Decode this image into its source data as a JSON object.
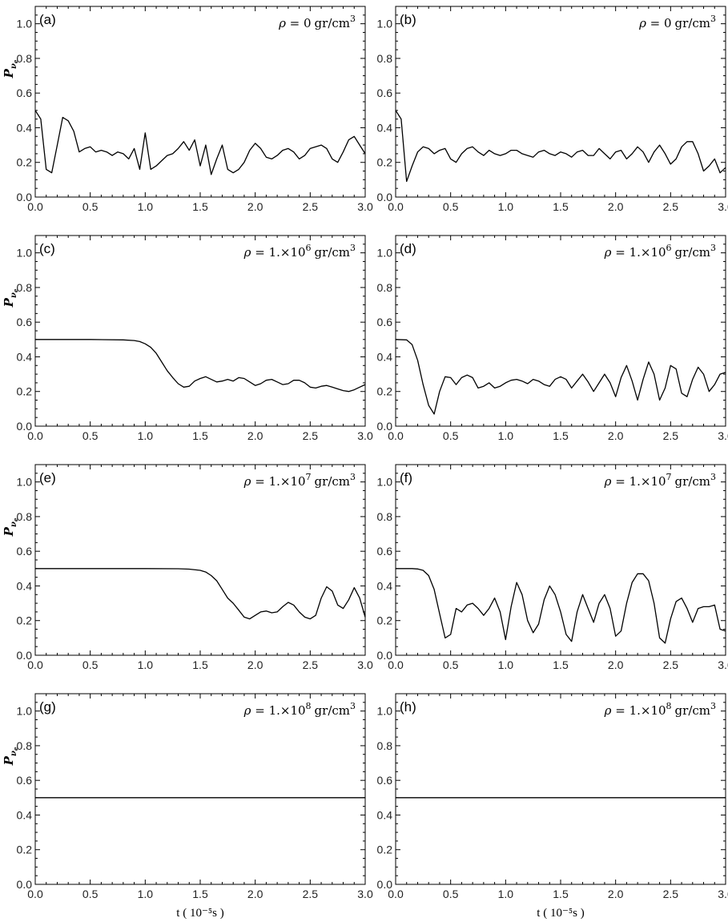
{
  "chart_data": [
    {
      "type": "line",
      "panel_label": "(a)",
      "density_label": {
        "rho": "ρ = ",
        "mantissa": "0",
        "exponent": "",
        "unit": "gr/cm",
        "unit_exp": "3"
      },
      "ylabel": {
        "base": "P",
        "sub": "ν",
        "subsub": "e"
      },
      "xlabel": "",
      "xlim": [
        0,
        3
      ],
      "ylim": [
        0,
        1.1
      ],
      "x": [
        0,
        0.05,
        0.1,
        0.15,
        0.2,
        0.25,
        0.3,
        0.35,
        0.4,
        0.45,
        0.5,
        0.55,
        0.6,
        0.65,
        0.7,
        0.75,
        0.8,
        0.85,
        0.9,
        0.95,
        1.0,
        1.05,
        1.1,
        1.15,
        1.2,
        1.25,
        1.3,
        1.35,
        1.4,
        1.45,
        1.5,
        1.55,
        1.6,
        1.65,
        1.7,
        1.75,
        1.8,
        1.85,
        1.9,
        1.95,
        2.0,
        2.05,
        2.1,
        2.15,
        2.2,
        2.25,
        2.3,
        2.35,
        2.4,
        2.45,
        2.5,
        2.55,
        2.6,
        2.65,
        2.7,
        2.75,
        2.8,
        2.85,
        2.9,
        2.95,
        3.0
      ],
      "y": [
        0.5,
        0.45,
        0.16,
        0.14,
        0.3,
        0.46,
        0.44,
        0.38,
        0.26,
        0.28,
        0.29,
        0.26,
        0.27,
        0.26,
        0.24,
        0.26,
        0.25,
        0.22,
        0.28,
        0.16,
        0.37,
        0.16,
        0.18,
        0.21,
        0.24,
        0.25,
        0.28,
        0.32,
        0.27,
        0.33,
        0.18,
        0.3,
        0.13,
        0.22,
        0.3,
        0.16,
        0.14,
        0.16,
        0.2,
        0.27,
        0.31,
        0.28,
        0.23,
        0.22,
        0.24,
        0.27,
        0.28,
        0.26,
        0.22,
        0.24,
        0.28,
        0.29,
        0.3,
        0.28,
        0.22,
        0.2,
        0.26,
        0.33,
        0.35,
        0.3,
        0.25
      ]
    },
    {
      "type": "line",
      "panel_label": "(b)",
      "density_label": {
        "rho": "ρ = ",
        "mantissa": "0",
        "exponent": "",
        "unit": "gr/cm",
        "unit_exp": "3"
      },
      "ylabel": {
        "base": "",
        "sub": "",
        "subsub": ""
      },
      "xlabel": "",
      "xlim": [
        0,
        3
      ],
      "ylim": [
        0,
        1.1
      ],
      "x": [
        0,
        0.05,
        0.1,
        0.15,
        0.2,
        0.25,
        0.3,
        0.35,
        0.4,
        0.45,
        0.5,
        0.55,
        0.6,
        0.65,
        0.7,
        0.75,
        0.8,
        0.85,
        0.9,
        0.95,
        1.0,
        1.05,
        1.1,
        1.15,
        1.2,
        1.25,
        1.3,
        1.35,
        1.4,
        1.45,
        1.5,
        1.55,
        1.6,
        1.65,
        1.7,
        1.75,
        1.8,
        1.85,
        1.9,
        1.95,
        2.0,
        2.05,
        2.1,
        2.15,
        2.2,
        2.25,
        2.3,
        2.35,
        2.4,
        2.45,
        2.5,
        2.55,
        2.6,
        2.65,
        2.7,
        2.75,
        2.8,
        2.85,
        2.9,
        2.95,
        3.0
      ],
      "y": [
        0.5,
        0.45,
        0.09,
        0.18,
        0.26,
        0.29,
        0.28,
        0.25,
        0.27,
        0.28,
        0.22,
        0.2,
        0.25,
        0.28,
        0.29,
        0.26,
        0.24,
        0.27,
        0.25,
        0.24,
        0.25,
        0.27,
        0.27,
        0.25,
        0.24,
        0.23,
        0.26,
        0.27,
        0.25,
        0.24,
        0.26,
        0.25,
        0.23,
        0.26,
        0.27,
        0.24,
        0.24,
        0.28,
        0.25,
        0.22,
        0.26,
        0.27,
        0.22,
        0.25,
        0.29,
        0.26,
        0.2,
        0.26,
        0.3,
        0.25,
        0.19,
        0.22,
        0.29,
        0.32,
        0.32,
        0.25,
        0.15,
        0.18,
        0.22,
        0.14,
        0.17
      ]
    },
    {
      "type": "line",
      "panel_label": "(c)",
      "density_label": {
        "rho": "ρ = ",
        "mantissa": "1.×10",
        "exponent": "6",
        "unit": "gr/cm",
        "unit_exp": "3"
      },
      "ylabel": {
        "base": "P",
        "sub": "ν",
        "subsub": "e"
      },
      "xlabel": "",
      "xlim": [
        0,
        3
      ],
      "ylim": [
        0,
        1.1
      ],
      "x": [
        0,
        0.5,
        0.8,
        0.9,
        0.95,
        1.0,
        1.05,
        1.1,
        1.15,
        1.2,
        1.25,
        1.3,
        1.35,
        1.4,
        1.45,
        1.5,
        1.55,
        1.6,
        1.65,
        1.7,
        1.75,
        1.8,
        1.85,
        1.9,
        1.95,
        2.0,
        2.05,
        2.1,
        2.15,
        2.2,
        2.25,
        2.3,
        2.35,
        2.4,
        2.45,
        2.5,
        2.55,
        2.6,
        2.65,
        2.7,
        2.75,
        2.8,
        2.85,
        2.9,
        2.95,
        3.0
      ],
      "y": [
        0.5,
        0.5,
        0.498,
        0.494,
        0.488,
        0.475,
        0.455,
        0.42,
        0.37,
        0.32,
        0.28,
        0.245,
        0.225,
        0.23,
        0.26,
        0.275,
        0.285,
        0.27,
        0.255,
        0.26,
        0.27,
        0.26,
        0.28,
        0.275,
        0.255,
        0.235,
        0.245,
        0.265,
        0.27,
        0.255,
        0.24,
        0.245,
        0.265,
        0.265,
        0.25,
        0.225,
        0.22,
        0.23,
        0.235,
        0.225,
        0.215,
        0.205,
        0.2,
        0.21,
        0.225,
        0.24
      ]
    },
    {
      "type": "line",
      "panel_label": "(d)",
      "density_label": {
        "rho": "ρ = ",
        "mantissa": "1.×10",
        "exponent": "6",
        "unit": "gr/cm",
        "unit_exp": "3"
      },
      "ylabel": {
        "base": "",
        "sub": "",
        "subsub": ""
      },
      "xlabel": "",
      "xlim": [
        0,
        3
      ],
      "ylim": [
        0,
        1.1
      ],
      "x": [
        0,
        0.1,
        0.15,
        0.2,
        0.25,
        0.3,
        0.35,
        0.4,
        0.45,
        0.5,
        0.55,
        0.6,
        0.65,
        0.7,
        0.75,
        0.8,
        0.85,
        0.9,
        0.95,
        1.0,
        1.05,
        1.1,
        1.15,
        1.2,
        1.25,
        1.3,
        1.35,
        1.4,
        1.45,
        1.5,
        1.55,
        1.6,
        1.65,
        1.7,
        1.75,
        1.8,
        1.85,
        1.9,
        1.95,
        2.0,
        2.05,
        2.1,
        2.15,
        2.2,
        2.25,
        2.3,
        2.35,
        2.4,
        2.45,
        2.5,
        2.55,
        2.6,
        2.65,
        2.7,
        2.75,
        2.8,
        2.85,
        2.9,
        2.95,
        3.0
      ],
      "y": [
        0.5,
        0.498,
        0.47,
        0.38,
        0.24,
        0.12,
        0.07,
        0.2,
        0.285,
        0.28,
        0.24,
        0.28,
        0.295,
        0.28,
        0.22,
        0.23,
        0.25,
        0.22,
        0.23,
        0.25,
        0.265,
        0.27,
        0.26,
        0.245,
        0.27,
        0.26,
        0.24,
        0.23,
        0.27,
        0.285,
        0.27,
        0.22,
        0.26,
        0.3,
        0.255,
        0.2,
        0.25,
        0.3,
        0.25,
        0.17,
        0.28,
        0.35,
        0.26,
        0.15,
        0.27,
        0.37,
        0.3,
        0.15,
        0.22,
        0.35,
        0.33,
        0.19,
        0.17,
        0.27,
        0.34,
        0.3,
        0.2,
        0.24,
        0.3,
        0.31
      ]
    },
    {
      "type": "line",
      "panel_label": "(e)",
      "density_label": {
        "rho": "ρ = ",
        "mantissa": "1.×10",
        "exponent": "7",
        "unit": "gr/cm",
        "unit_exp": "3"
      },
      "ylabel": {
        "base": "P",
        "sub": "ν",
        "subsub": "e"
      },
      "xlabel": "",
      "xlim": [
        0,
        3
      ],
      "ylim": [
        0,
        1.1
      ],
      "x": [
        0,
        1.0,
        1.3,
        1.4,
        1.5,
        1.55,
        1.6,
        1.65,
        1.7,
        1.75,
        1.8,
        1.85,
        1.9,
        1.95,
        2.0,
        2.05,
        2.1,
        2.15,
        2.2,
        2.25,
        2.3,
        2.35,
        2.4,
        2.45,
        2.5,
        2.55,
        2.6,
        2.65,
        2.7,
        2.75,
        2.8,
        2.85,
        2.9,
        2.95,
        3.0
      ],
      "y": [
        0.5,
        0.5,
        0.499,
        0.497,
        0.49,
        0.48,
        0.46,
        0.43,
        0.38,
        0.33,
        0.3,
        0.26,
        0.22,
        0.21,
        0.23,
        0.25,
        0.255,
        0.245,
        0.25,
        0.28,
        0.305,
        0.29,
        0.25,
        0.22,
        0.21,
        0.23,
        0.33,
        0.395,
        0.37,
        0.29,
        0.27,
        0.32,
        0.39,
        0.33,
        0.22
      ]
    },
    {
      "type": "line",
      "panel_label": "(f)",
      "density_label": {
        "rho": "ρ = ",
        "mantissa": "1.×10",
        "exponent": "7",
        "unit": "gr/cm",
        "unit_exp": "3"
      },
      "ylabel": {
        "base": "",
        "sub": "",
        "subsub": ""
      },
      "xlabel": "",
      "xlim": [
        0,
        3
      ],
      "ylim": [
        0,
        1.1
      ],
      "x": [
        0,
        0.15,
        0.2,
        0.25,
        0.3,
        0.35,
        0.4,
        0.45,
        0.5,
        0.55,
        0.6,
        0.65,
        0.7,
        0.75,
        0.8,
        0.85,
        0.9,
        0.95,
        1.0,
        1.05,
        1.1,
        1.15,
        1.2,
        1.25,
        1.3,
        1.35,
        1.4,
        1.45,
        1.5,
        1.55,
        1.6,
        1.65,
        1.7,
        1.75,
        1.8,
        1.85,
        1.9,
        1.95,
        2.0,
        2.05,
        2.1,
        2.15,
        2.2,
        2.25,
        2.3,
        2.35,
        2.4,
        2.45,
        2.5,
        2.55,
        2.6,
        2.65,
        2.7,
        2.75,
        2.8,
        2.85,
        2.9,
        2.95,
        3.0
      ],
      "y": [
        0.5,
        0.5,
        0.498,
        0.49,
        0.46,
        0.38,
        0.24,
        0.1,
        0.12,
        0.27,
        0.25,
        0.29,
        0.3,
        0.27,
        0.23,
        0.27,
        0.33,
        0.25,
        0.09,
        0.28,
        0.42,
        0.35,
        0.2,
        0.13,
        0.18,
        0.32,
        0.4,
        0.35,
        0.25,
        0.12,
        0.08,
        0.25,
        0.35,
        0.27,
        0.19,
        0.3,
        0.35,
        0.27,
        0.11,
        0.14,
        0.3,
        0.42,
        0.47,
        0.47,
        0.43,
        0.3,
        0.1,
        0.07,
        0.21,
        0.31,
        0.33,
        0.27,
        0.19,
        0.27,
        0.28,
        0.28,
        0.29,
        0.15,
        0.14
      ]
    },
    {
      "type": "line",
      "panel_label": "(g)",
      "density_label": {
        "rho": "ρ = ",
        "mantissa": "1.×10",
        "exponent": "8",
        "unit": "gr/cm",
        "unit_exp": "3"
      },
      "ylabel": {
        "base": "P",
        "sub": "ν",
        "subsub": "e"
      },
      "xlabel": "t ( 10⁻⁵s )",
      "xlim": [
        0,
        3
      ],
      "ylim": [
        0,
        1.1
      ],
      "x": [
        0,
        3.0
      ],
      "y": [
        0.5,
        0.5
      ]
    },
    {
      "type": "line",
      "panel_label": "(h)",
      "density_label": {
        "rho": "ρ = ",
        "mantissa": "1.×10",
        "exponent": "8",
        "unit": "gr/cm",
        "unit_exp": "3"
      },
      "ylabel": {
        "base": "",
        "sub": "",
        "subsub": ""
      },
      "xlabel": "t ( 10⁻⁵s )",
      "xlim": [
        0,
        3
      ],
      "ylim": [
        0,
        1.1
      ],
      "x": [
        0,
        3.0
      ],
      "y": [
        0.5,
        0.5
      ]
    }
  ],
  "axes": {
    "x_ticks": [
      "0.0",
      "0.5",
      "1.0",
      "1.5",
      "2.0",
      "2.5",
      "3.0"
    ],
    "y_ticks": [
      "0.0",
      "0.2",
      "0.4",
      "0.6",
      "0.8",
      "1.0"
    ]
  },
  "grid": false,
  "legend": "none"
}
